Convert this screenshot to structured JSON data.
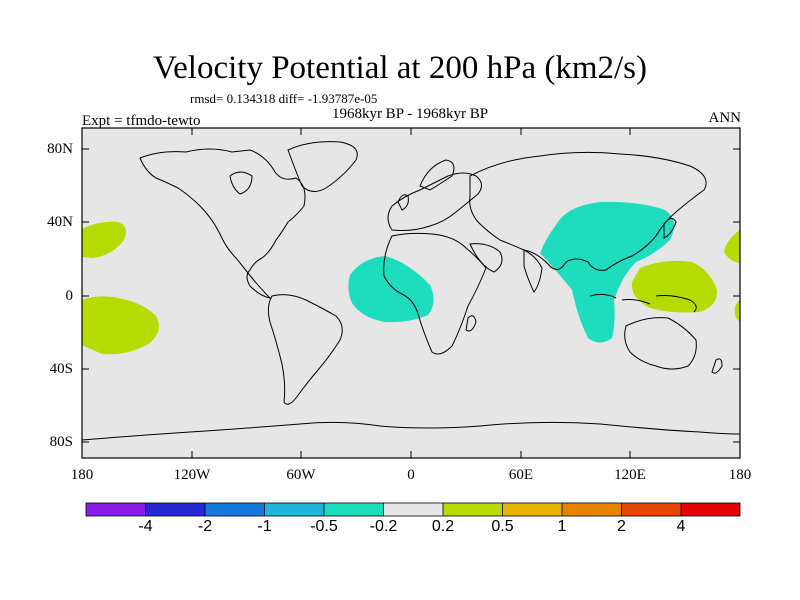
{
  "map": {
    "title": "Velocity Potential at 200 hPa (km2/s)",
    "stats": "rmsd= 0.134318 diff= -1.93787e-05",
    "period": "1968kyr BP - 1968kyr BP",
    "experiment": "Expt = tfmdo-tewto",
    "season": "ANN",
    "lat_ticks": [
      "80N",
      "40N",
      "0",
      "40S",
      "80S"
    ],
    "lon_ticks": [
      "180",
      "120W",
      "60W",
      "0",
      "60E",
      "120E",
      "180"
    ],
    "ocean_color": "#e6e6e6",
    "coast_color": "#000000"
  },
  "colorbar": {
    "colors": [
      "#8a1ee6",
      "#2828d2",
      "#1478dc",
      "#1eb4dc",
      "#1edcbe",
      "#e6e6e6",
      "#b4dc00",
      "#e6b400",
      "#e68200",
      "#e64600",
      "#e60000"
    ],
    "labels": [
      "-4",
      "-2",
      "-1",
      "-0.5",
      "-0.2",
      "0.2",
      "0.5",
      "1",
      "2",
      "4"
    ]
  },
  "anomalies": {
    "positive_color": "#b4dc00",
    "negative_color": "#1edcbe"
  }
}
